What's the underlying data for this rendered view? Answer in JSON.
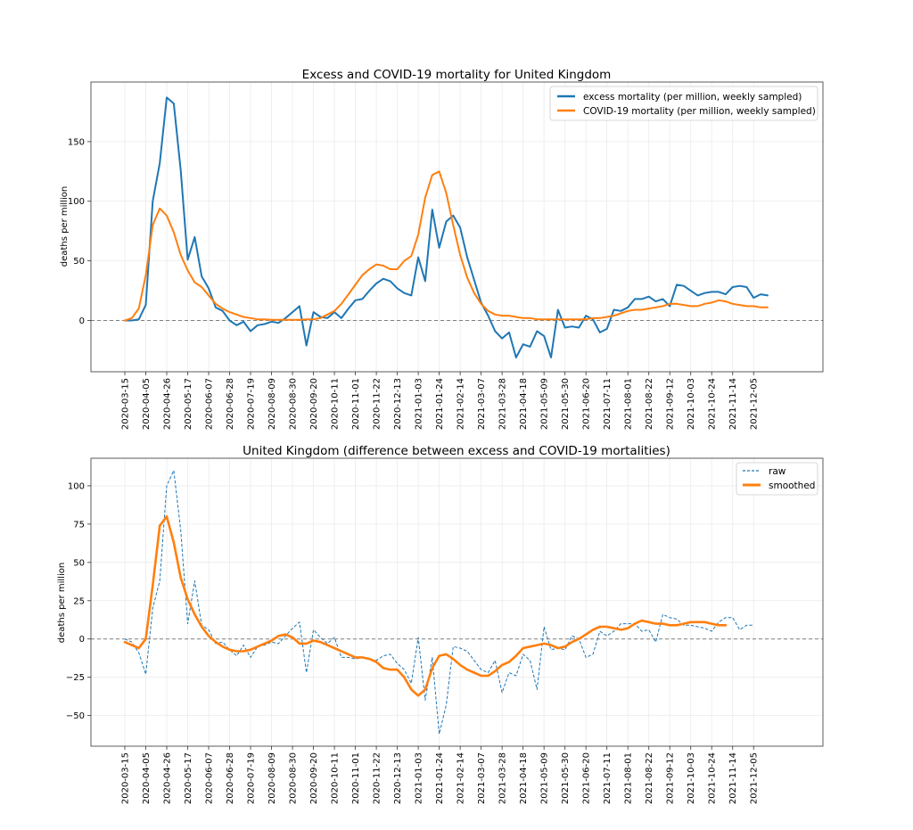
{
  "chart_data": [
    {
      "type": "line",
      "title": "Excess and COVID-19 mortality for United Kingdom",
      "xlabel": "",
      "ylabel": "deaths per million",
      "ylim": [
        -43,
        200
      ],
      "yticks": [
        0,
        50,
        100,
        150
      ],
      "grid": true,
      "legend_position": "top-right",
      "zero_line": true,
      "x_start": "2020-03-15",
      "x_step_days": 7,
      "xticks": [
        "2020-03-15",
        "2020-04-05",
        "2020-04-26",
        "2020-05-17",
        "2020-06-07",
        "2020-06-28",
        "2020-07-19",
        "2020-08-09",
        "2020-08-30",
        "2020-09-20",
        "2020-10-11",
        "2020-11-01",
        "2020-11-22",
        "2020-12-13",
        "2021-01-03",
        "2021-01-24",
        "2021-02-14",
        "2021-03-07",
        "2021-03-28",
        "2021-04-18",
        "2021-05-09",
        "2021-05-30",
        "2021-06-20",
        "2021-07-11",
        "2021-08-01",
        "2021-08-22",
        "2021-09-12",
        "2021-10-03",
        "2021-10-24",
        "2021-11-14",
        "2021-12-05"
      ],
      "series": [
        {
          "name": "excess mortality (per million, weekly sampled)",
          "color": "#1f77b4",
          "style": "solid",
          "values": [
            0,
            0,
            1,
            13,
            100,
            132,
            187,
            182,
            126,
            51,
            70,
            37,
            27,
            11,
            8,
            0,
            -4,
            -1,
            -9,
            -4,
            -3,
            -1,
            -2,
            2,
            7,
            12,
            -21,
            7,
            3,
            2,
            7,
            2,
            10,
            17,
            18,
            25,
            31,
            35,
            33,
            27,
            23,
            21,
            53,
            33,
            93,
            61,
            83,
            88,
            78,
            53,
            34,
            15,
            4,
            -9,
            -15,
            -10,
            -31,
            -20,
            -22,
            -9,
            -13,
            -31,
            9,
            -6,
            -5,
            -6,
            4,
            1,
            -10,
            -7,
            9,
            8,
            11,
            18,
            18,
            20,
            16,
            18,
            12,
            30,
            29,
            25,
            21,
            23,
            24,
            24,
            22,
            28,
            29,
            28,
            19,
            22,
            21,
            null,
            null
          ]
        },
        {
          "name": "COVID-19 mortality (per million, weekly sampled)",
          "color": "#ff7f0e",
          "style": "solid",
          "values": [
            0,
            2,
            10,
            38,
            80,
            94,
            88,
            74,
            55,
            42,
            32,
            28,
            21,
            14,
            10,
            7,
            5,
            3,
            2,
            1,
            1,
            0.5,
            0.5,
            0.5,
            0.5,
            0.5,
            1,
            1,
            2,
            5,
            8,
            14,
            22,
            30,
            38,
            43,
            47,
            46,
            43,
            43,
            50,
            54,
            72,
            103,
            122,
            125,
            107,
            80,
            55,
            36,
            23,
            14,
            8,
            5,
            4,
            4,
            3,
            2,
            2,
            1,
            1,
            1,
            1,
            1,
            1,
            1,
            1,
            2,
            2,
            3,
            4,
            6,
            8,
            9,
            9,
            10,
            11,
            12,
            14,
            14,
            13,
            12,
            12,
            14,
            15,
            17,
            16,
            14,
            13,
            12,
            12,
            11,
            11,
            null,
            null
          ]
        }
      ]
    },
    {
      "type": "line",
      "title": "United Kingdom (difference between excess and COVID-19 mortalities)",
      "xlabel": "",
      "ylabel": "deaths per million",
      "ylim": [
        -70,
        118
      ],
      "yticks": [
        -50,
        -25,
        0,
        25,
        50,
        75,
        100
      ],
      "grid": true,
      "legend_position": "top-right",
      "zero_line": true,
      "x_start": "2020-03-15",
      "x_step_days": 7,
      "xticks": [
        "2020-03-15",
        "2020-04-05",
        "2020-04-26",
        "2020-05-17",
        "2020-06-07",
        "2020-06-28",
        "2020-07-19",
        "2020-08-09",
        "2020-08-30",
        "2020-09-20",
        "2020-10-11",
        "2020-11-01",
        "2020-11-22",
        "2020-12-13",
        "2021-01-03",
        "2021-01-24",
        "2021-02-14",
        "2021-03-07",
        "2021-03-28",
        "2021-04-18",
        "2021-05-09",
        "2021-05-30",
        "2021-06-20",
        "2021-07-11",
        "2021-08-01",
        "2021-08-22",
        "2021-09-12",
        "2021-10-03",
        "2021-10-24",
        "2021-11-14",
        "2021-12-05"
      ],
      "series": [
        {
          "name": "raw",
          "color": "#1f77b4",
          "style": "dashed",
          "values": [
            0,
            -2,
            -9,
            -23,
            20,
            38,
            100,
            110,
            71,
            10,
            38,
            9,
            6,
            -3,
            -2,
            -7,
            -11,
            -4,
            -12,
            -5,
            -4,
            -2,
            -3,
            2,
            7,
            11,
            -22,
            6,
            1,
            -3,
            1,
            -12,
            -12,
            -13,
            -12,
            -13,
            -14,
            -11,
            -10,
            -16,
            -20,
            -29,
            1,
            -40,
            -12,
            -62,
            -43,
            -5,
            -6,
            -8,
            -14,
            -20,
            -22,
            -14,
            -35,
            -22,
            -24,
            -10,
            -14,
            -33,
            8,
            -7,
            -6,
            -7,
            2,
            0,
            -12,
            -10,
            5,
            2,
            5,
            10,
            10,
            10,
            5,
            6,
            -2,
            16,
            14,
            13,
            9,
            9,
            8,
            7,
            5,
            11,
            14,
            14,
            6,
            9,
            9,
            null,
            null
          ]
        },
        {
          "name": "smoothed",
          "color": "#ff7f0e",
          "style": "solid",
          "values": [
            -2,
            -4,
            -6,
            0,
            35,
            74,
            80,
            63,
            40,
            26,
            16,
            8,
            2,
            -2,
            -5,
            -7,
            -8,
            -8,
            -7,
            -5,
            -3,
            -1,
            2,
            3,
            1,
            -3,
            -3,
            -1,
            -2,
            -4,
            -6,
            -8,
            -10,
            -12,
            -12,
            -13,
            -15,
            -19,
            -20,
            -20,
            -25,
            -33,
            -37,
            -33,
            -19,
            -11,
            -10,
            -13,
            -17,
            -20,
            -22,
            -24,
            -24,
            -21,
            -17,
            -15,
            -11,
            -6,
            -5,
            -4,
            -3,
            -4,
            -6,
            -5,
            -2,
            0,
            3,
            6,
            8,
            8,
            7,
            6,
            7,
            10,
            12,
            11,
            10,
            10,
            9,
            9,
            10,
            11,
            11,
            11,
            10,
            9,
            9,
            null,
            null,
            null,
            null,
            null,
            null,
            null,
            null
          ]
        }
      ]
    }
  ]
}
